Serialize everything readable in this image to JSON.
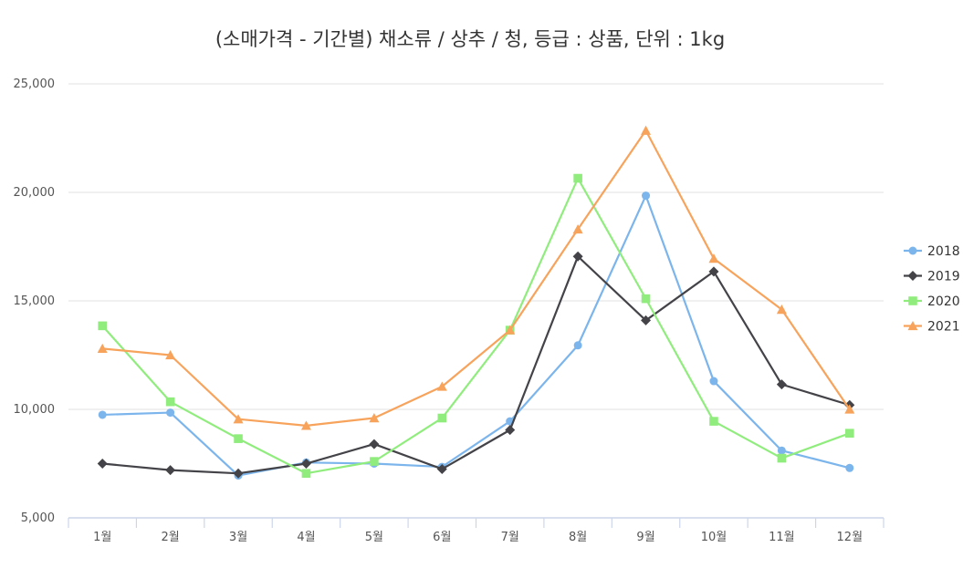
{
  "chart_data": {
    "type": "line",
    "title": "(소매가격 - 기간별) 채소류 / 상추 / 청, 등급 : 상품, 단위 : 1kg",
    "xlabel": "",
    "ylabel": "",
    "categories": [
      "1월",
      "2월",
      "3월",
      "4월",
      "5월",
      "6월",
      "7월",
      "8월",
      "9월",
      "10월",
      "11월",
      "12월"
    ],
    "ylim": [
      5000,
      25000
    ],
    "yticks": [
      5000,
      10000,
      15000,
      20000,
      25000
    ],
    "ytick_labels": [
      "5,000",
      "10,000",
      "15,000",
      "20,000",
      "25,000"
    ],
    "grid": true,
    "legend_position": "right",
    "series": [
      {
        "name": "2018",
        "color": "#7cb5ec",
        "marker": "circle",
        "values": [
          9750,
          9850,
          6950,
          7550,
          7500,
          7350,
          9450,
          12950,
          19850,
          11300,
          8100,
          7300
        ]
      },
      {
        "name": "2019",
        "color": "#434348",
        "marker": "diamond",
        "values": [
          7500,
          7200,
          7050,
          7500,
          8400,
          7250,
          9050,
          17050,
          14100,
          16350,
          11150,
          10200
        ]
      },
      {
        "name": "2020",
        "color": "#90ed7d",
        "marker": "square",
        "values": [
          13850,
          10350,
          8650,
          7050,
          7600,
          9600,
          13650,
          20650,
          15100,
          9450,
          7750,
          8900
        ]
      },
      {
        "name": "2021",
        "color": "#f7a35c",
        "marker": "triangle",
        "values": [
          12800,
          12500,
          9550,
          9250,
          9600,
          11050,
          13650,
          18300,
          22850,
          16950,
          14600,
          10000
        ]
      }
    ]
  }
}
